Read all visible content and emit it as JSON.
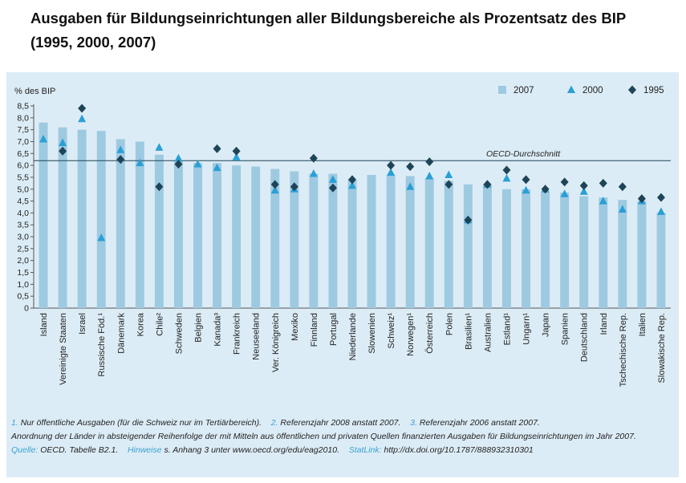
{
  "title": {
    "line1": "Ausgaben für Bildungseinrichtungen aller Bildungsbereiche als Prozentsatz des BIP",
    "line2": "(1995, 2000, 2007)"
  },
  "chart_data": {
    "type": "bar",
    "ylabel": "% des BIP",
    "ylim": [
      0,
      8.5
    ],
    "yticks": [
      "0",
      "0,5",
      "1,0",
      "1,5",
      "2,0",
      "2,5",
      "3,0",
      "3,5",
      "4,0",
      "4,5",
      "5,0",
      "5,5",
      "6,0",
      "6,5",
      "7,0",
      "7,5",
      "8,0",
      "8,5"
    ],
    "legend_placement": "top-right",
    "colors": {
      "bar_2007": "#9ecae1",
      "marker_2000": "#2a9fd6",
      "marker_1995": "#1e4457",
      "reference_line": "#1e4457",
      "axis_text": "#222222"
    },
    "categories": [
      "Island",
      "Vereinigte Staaten",
      "Israel",
      "Russische Föd.¹",
      "Dänemark",
      "Korea",
      "Chile²",
      "Schweden",
      "Belgien",
      "Kanada³",
      "Frankreich",
      "Neuseeland",
      "Ver. Königreich",
      "Mexiko",
      "Finnland",
      "Portugal",
      "Niederlande",
      "Slowenien",
      "Schweiz¹",
      "Norwegen¹",
      "Österreich",
      "Polen",
      "Brasilien¹",
      "Australien",
      "Estland¹",
      "Ungarn¹",
      "Japan",
      "Spanien",
      "Deutschland",
      "Irland",
      "Tschechische Rep.",
      "Italien",
      "Slowakische Rep."
    ],
    "series": [
      {
        "name": "2007",
        "kind": "bar",
        "values": [
          7.8,
          7.6,
          7.5,
          7.45,
          7.1,
          7.0,
          6.45,
          6.2,
          6.1,
          6.1,
          6.0,
          5.95,
          5.85,
          5.75,
          5.65,
          5.65,
          5.4,
          5.6,
          5.6,
          5.55,
          5.45,
          5.35,
          5.2,
          5.2,
          5.0,
          5.0,
          4.9,
          4.85,
          4.7,
          4.65,
          4.55,
          4.5,
          4.0
        ]
      },
      {
        "name": "2000",
        "kind": "triangle",
        "values": [
          7.1,
          6.95,
          7.95,
          2.95,
          6.65,
          6.1,
          6.75,
          6.3,
          6.05,
          5.9,
          6.35,
          null,
          4.95,
          5.0,
          5.65,
          5.4,
          5.15,
          null,
          5.7,
          5.1,
          5.55,
          5.6,
          3.7,
          5.2,
          5.45,
          4.95,
          5.0,
          4.8,
          4.9,
          4.5,
          4.15,
          4.5,
          4.05
        ]
      },
      {
        "name": "1995",
        "kind": "diamond",
        "values": [
          null,
          6.6,
          8.4,
          null,
          6.25,
          null,
          5.1,
          6.05,
          null,
          6.7,
          6.6,
          null,
          5.2,
          5.1,
          6.3,
          5.05,
          5.4,
          null,
          6.0,
          5.95,
          6.15,
          5.2,
          3.7,
          5.2,
          5.8,
          5.4,
          5.0,
          5.3,
          5.15,
          5.25,
          5.1,
          4.6,
          4.65
        ]
      }
    ],
    "reference_line": {
      "label": "OECD-Durchschnitt",
      "value": 6.2
    }
  },
  "notes": {
    "fn1_num": "1.",
    "fn1_text": "Nur öffentliche Ausgaben (für die Schweiz nur im Tertiärbereich).",
    "fn2_num": "2.",
    "fn2_text": "Referenzjahr 2008 anstatt 2007.",
    "fn3_num": "3.",
    "fn3_text": "Referenzjahr 2006 anstatt 2007.",
    "order_text": "Anordnung der Länder in absteigender Reihenfolge der mit Mitteln aus öffentlichen und privaten Quellen finanzierten Ausgaben für Bildungseinrichtungen im Jahr 2007.",
    "source_label": "Quelle:",
    "source_text": "OECD. Tabelle B2.1.",
    "hint_label": "Hinweise",
    "hint_text": "s. Anhang 3 unter www.oecd.org/edu/eag2010.",
    "statlink_label": "StatLink:",
    "statlink_text": "http://dx.doi.org/10.1787/888932310301"
  }
}
